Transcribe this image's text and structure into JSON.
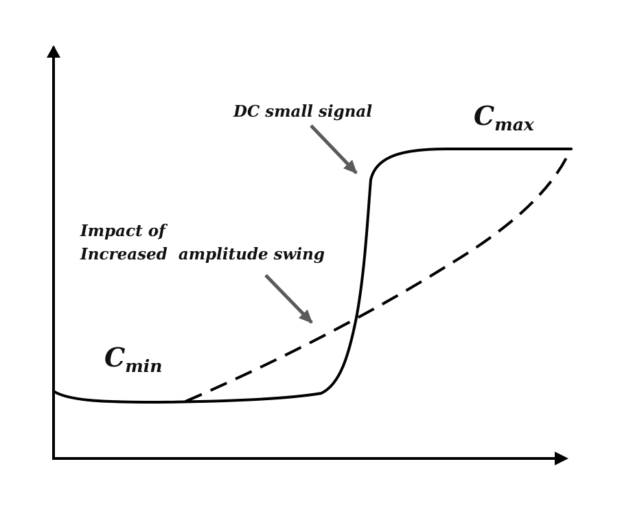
{
  "labels": {
    "dc_small_signal": "DC small signal",
    "impact_line1": "Impact of",
    "impact_line2": "Increased  amplitude swing",
    "c_min": {
      "base": "C",
      "sub": "min"
    },
    "c_max": {
      "base": "C",
      "sub": "max"
    }
  },
  "colors": {
    "curve": "#000000",
    "axis": "#000000",
    "arrow": "#5a5a5a",
    "text": "#111111"
  },
  "curves": [
    {
      "id": "dc-small-signal",
      "style": "solid"
    },
    {
      "id": "increased-amplitude-swing",
      "style": "dashed"
    }
  ]
}
